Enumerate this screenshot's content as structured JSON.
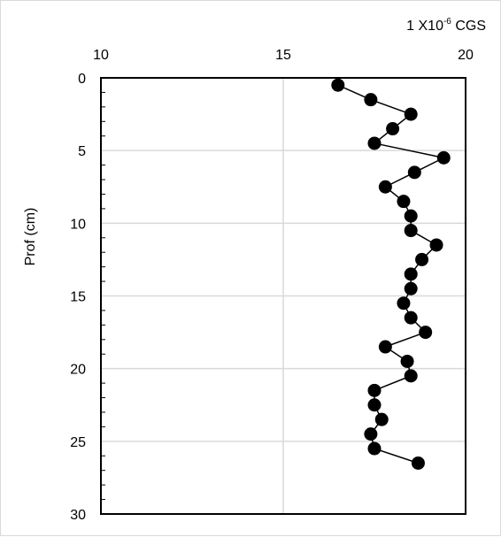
{
  "chart_data": {
    "type": "scatter",
    "title": "",
    "xlabel": "1 X10-6 CGS",
    "xlabel_parts": {
      "base": "1 X10",
      "sup": "-6",
      "unit": " CGS"
    },
    "ylabel": "Prof (cm)",
    "x_axis_position": "top",
    "y_axis_reversed": true,
    "xlim": [
      10,
      20
    ],
    "ylim": [
      0,
      30
    ],
    "x_ticks": [
      10,
      15,
      20
    ],
    "y_ticks": [
      0,
      5,
      10,
      15,
      20,
      25,
      30
    ],
    "grid": {
      "vertical": true,
      "horizontal": true
    },
    "series": [
      {
        "marker": "circle",
        "line": true,
        "color": "#000000",
        "points": [
          {
            "x": 16.5,
            "y": 0.5
          },
          {
            "x": 17.4,
            "y": 1.5
          },
          {
            "x": 18.5,
            "y": 2.5
          },
          {
            "x": 18.0,
            "y": 3.5
          },
          {
            "x": 17.5,
            "y": 4.5
          },
          {
            "x": 19.4,
            "y": 5.5
          },
          {
            "x": 18.6,
            "y": 6.5
          },
          {
            "x": 17.8,
            "y": 7.5
          },
          {
            "x": 18.3,
            "y": 8.5
          },
          {
            "x": 18.5,
            "y": 9.5
          },
          {
            "x": 18.5,
            "y": 10.5
          },
          {
            "x": 19.2,
            "y": 11.5
          },
          {
            "x": 18.8,
            "y": 12.5
          },
          {
            "x": 18.5,
            "y": 13.5
          },
          {
            "x": 18.5,
            "y": 14.5
          },
          {
            "x": 18.3,
            "y": 15.5
          },
          {
            "x": 18.5,
            "y": 16.5
          },
          {
            "x": 18.9,
            "y": 17.5
          },
          {
            "x": 17.8,
            "y": 18.5
          },
          {
            "x": 18.4,
            "y": 19.5
          },
          {
            "x": 18.5,
            "y": 20.5
          },
          {
            "x": 17.5,
            "y": 21.5
          },
          {
            "x": 17.5,
            "y": 22.5
          },
          {
            "x": 17.7,
            "y": 23.5
          },
          {
            "x": 17.4,
            "y": 24.5
          },
          {
            "x": 17.5,
            "y": 25.5
          },
          {
            "x": 18.7,
            "y": 26.5
          }
        ]
      }
    ]
  }
}
